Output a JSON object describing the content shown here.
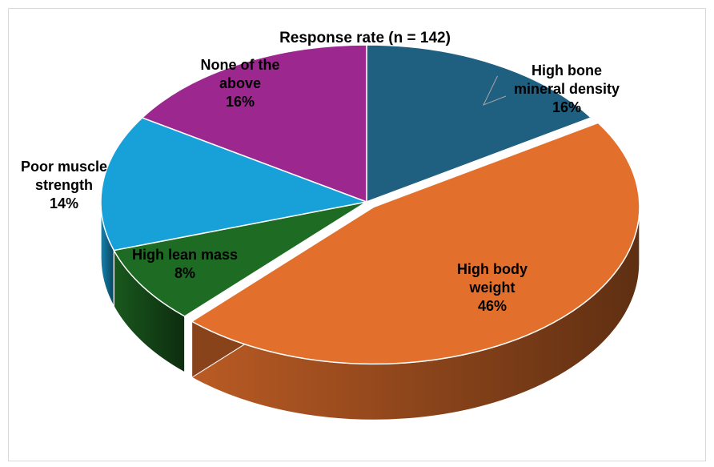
{
  "chart_data": {
    "type": "pie",
    "title": "Response rate (n = 142)",
    "style": "3d-exploded",
    "slices": [
      {
        "label_lines": [
          "High bone",
          "mineral density"
        ],
        "pct_label": "16%",
        "value": 16,
        "color": "#1F5F80"
      },
      {
        "label_lines": [
          "High body",
          "weight"
        ],
        "pct_label": "46%",
        "value": 46,
        "color": "#E36F2C"
      },
      {
        "label_lines": [
          "High lean mass"
        ],
        "pct_label": "8%",
        "value": 8,
        "color": "#1E6B23"
      },
      {
        "label_lines": [
          "Poor muscle",
          "strength"
        ],
        "pct_label": "14%",
        "value": 14,
        "color": "#18A1D9"
      },
      {
        "label_lines": [
          "None of the",
          "above"
        ],
        "pct_label": "16%",
        "value": 16,
        "color": "#9C278F"
      }
    ]
  }
}
